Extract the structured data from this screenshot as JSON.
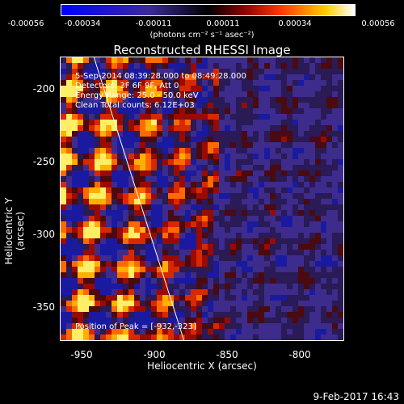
{
  "colorbar": {
    "ticks": [
      "-0.00056",
      "-0.00034",
      "-0.00011",
      "0.00011",
      "0.00034",
      "0.00056"
    ],
    "units": "(photons cm⁻² s⁻¹ asec⁻²)",
    "vmin": -0.00056,
    "vmax": 0.00056
  },
  "chart_data": {
    "type": "heatmap",
    "title": "Reconstructed RHESSI Image",
    "xlabel": "Heliocentric X (arcsec)",
    "ylabel": "Heliocentric Y (arcsec)",
    "xlim": [
      -965,
      -770
    ],
    "ylim": [
      -375,
      -180
    ],
    "xticks": [
      "-950",
      "-900",
      "-850",
      "-800"
    ],
    "yticks": [
      "-200",
      "-250",
      "-300",
      "-350"
    ],
    "annotations": {
      "time_range": "5-Sep-2014 08:39:28.000 to 08:49:28.000",
      "detectors": "Detectors: 3F 6F 9F, Att 0",
      "energy": "Energy Range: 25.0 - 50.0 keV",
      "clean": "Clean    Total counts: 6.12E+03",
      "peak": "Position of Peak = [-932,-323]"
    },
    "limb_line": [
      [
        -942,
        -180
      ],
      [
        -880,
        -375
      ]
    ]
  },
  "footer": {
    "date": "9-Feb-2017 16:43"
  }
}
